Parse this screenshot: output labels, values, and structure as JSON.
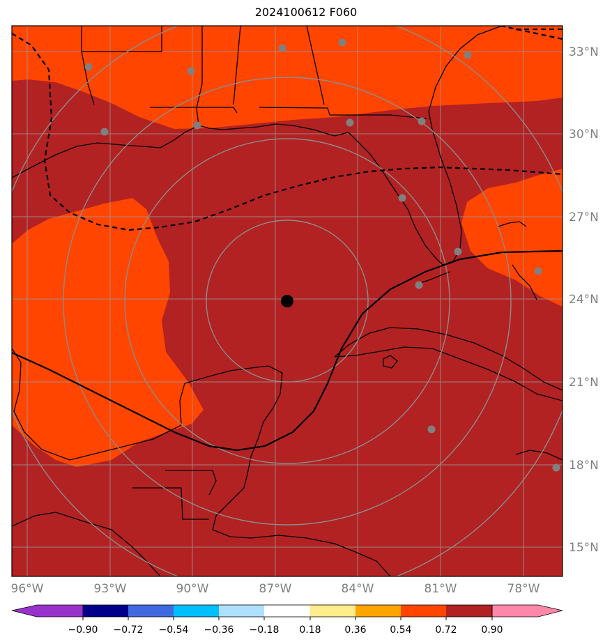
{
  "title": "2024100612 F060",
  "map": {
    "latitude_labels": [
      "33°N",
      "30°N",
      "27°N",
      "24°N",
      "21°N",
      "18°N",
      "15°N"
    ],
    "longitude_labels": [
      "96°W",
      "93°W",
      "90°W",
      "87°W",
      "84°W",
      "81°W",
      "78°W"
    ],
    "center_marker": "storm-center",
    "colors": {
      "background_fill": "#b22222",
      "highlight_fill": "#ff4500",
      "range_rings": "#808080",
      "station_dots": "#808080",
      "coastlines": "#000000"
    }
  },
  "colorbar": {
    "tick_labels": [
      "−0.90",
      "−0.72",
      "−0.54",
      "−0.36",
      "−0.18",
      "0.18",
      "0.36",
      "0.54",
      "0.72",
      "0.90"
    ],
    "colors": [
      "#9932cc",
      "#00008b",
      "#4169e1",
      "#00bfff",
      "#b0e0ff",
      "#ffffff",
      "#ffec8b",
      "#ffa500",
      "#ff4500",
      "#b22222",
      "#ff88aa"
    ]
  }
}
